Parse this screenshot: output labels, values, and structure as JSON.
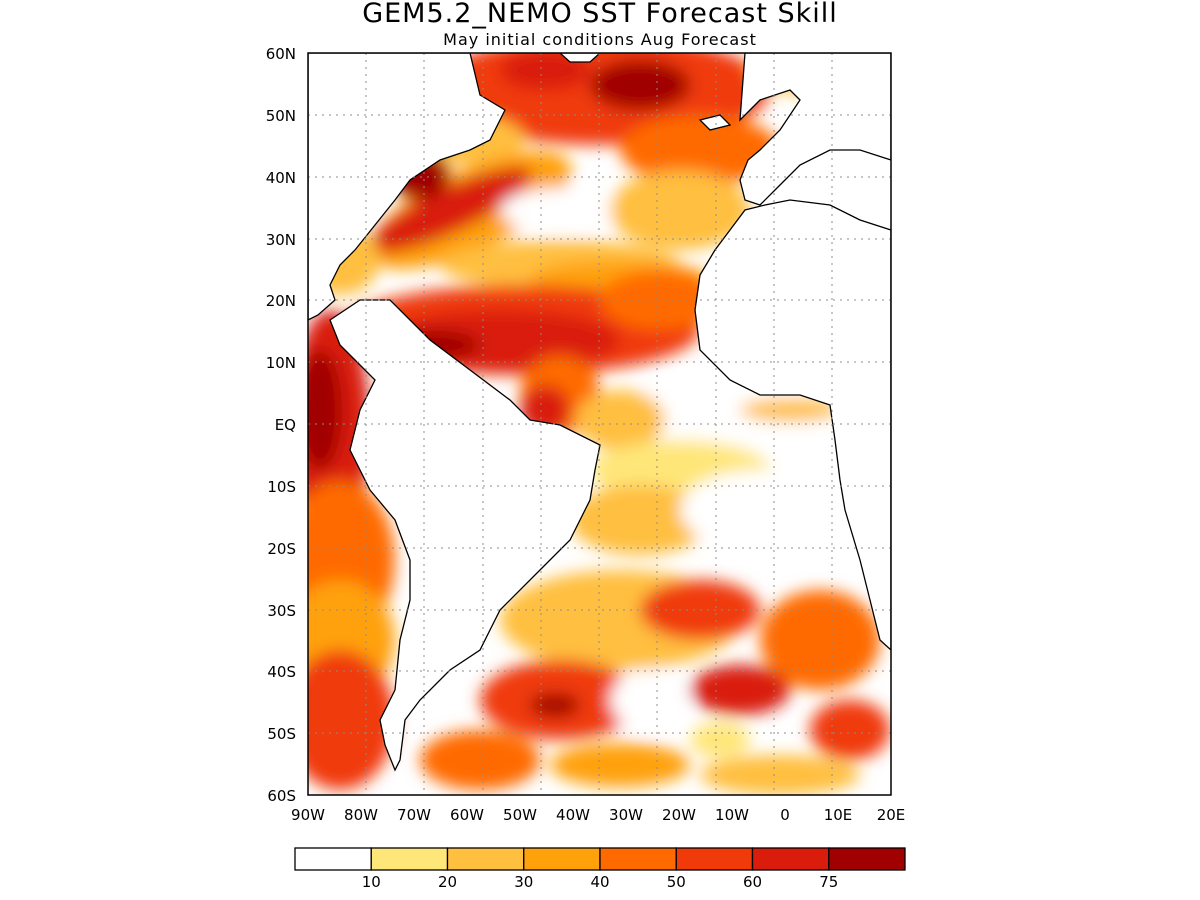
{
  "title": "GEM5.2_NEMO SST Forecast Skill",
  "subtitle": "May initial conditions  Aug Forecast",
  "y_ticks": [
    "60N",
    "50N",
    "40N",
    "30N",
    "20N",
    "10N",
    "EQ",
    "10S",
    "20S",
    "30S",
    "40S",
    "50S",
    "60S"
  ],
  "x_ticks": [
    "90W",
    "80W",
    "70W",
    "60W",
    "50W",
    "40W",
    "30W",
    "20W",
    "10W",
    "0",
    "10E",
    "20E"
  ],
  "colorbar": {
    "colors": [
      "#ffffff",
      "#ffe679",
      "#ffbf3f",
      "#ffa10b",
      "#ff6a00",
      "#f03a0a",
      "#d91c0c",
      "#a10000"
    ],
    "labels": [
      "10",
      "20",
      "30",
      "40",
      "50",
      "60",
      "75"
    ]
  },
  "colors": {
    "land": "#ffffff",
    "coast": "#000000",
    "grid": "#8c8c8c"
  }
}
